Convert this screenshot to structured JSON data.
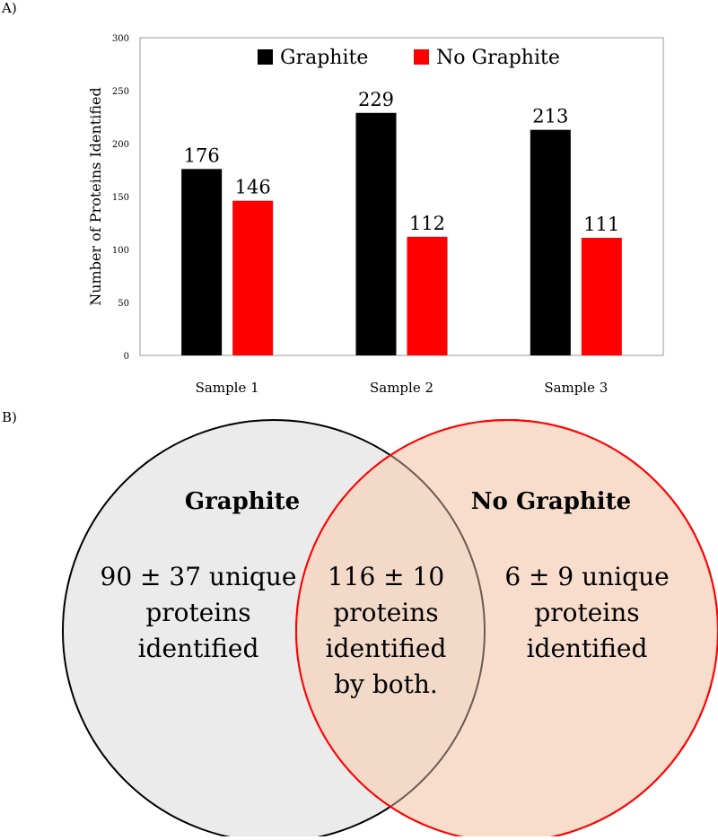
{
  "panels": {
    "a_label": "A)",
    "b_label": "B)"
  },
  "chart_data": {
    "type": "bar",
    "categories": [
      "Sample 1",
      "Sample 2",
      "Sample 3"
    ],
    "series": [
      {
        "name": "Graphite",
        "values": [
          176,
          229,
          213
        ],
        "color": "#000000"
      },
      {
        "name": "No Graphite",
        "values": [
          146,
          112,
          111
        ],
        "color": "#ff0000"
      }
    ],
    "title": "",
    "xlabel": "",
    "ylabel": "Number of Proteins Identified",
    "ylim": [
      0,
      300
    ],
    "yticks": [
      0,
      50,
      100,
      150,
      200,
      250,
      300
    ],
    "legend": "top-center",
    "grid": false,
    "data_labels": true
  },
  "venn": {
    "left": {
      "title": "Graphite",
      "lines": [
        "90 ± 37 unique",
        "proteins",
        "identified"
      ],
      "fill": "#ebebeb",
      "stroke": "#000000"
    },
    "right": {
      "title": "No Graphite",
      "lines": [
        "6 ± 9 unique",
        "proteins",
        "identified"
      ],
      "fill": "#f8ddcc",
      "stroke": "#ff0000",
      "title_color": "#ff0000"
    },
    "overlap": {
      "lines": [
        "116 ± 10",
        "proteins",
        "identified",
        "by both."
      ],
      "fill": "#f2d9c8"
    }
  }
}
